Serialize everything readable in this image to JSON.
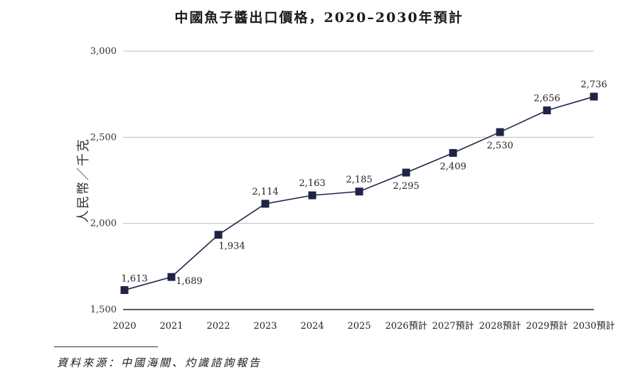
{
  "chart_data": {
    "type": "line",
    "title": "中國魚子醬出口價格，2020–2030年預計",
    "ylabel": "人民幣／千克",
    "xlabel": "",
    "categories": [
      "2020",
      "2021",
      "2022",
      "2023",
      "2024",
      "2025",
      "2026預計",
      "2027預計",
      "2028預計",
      "2029預計",
      "2030預計"
    ],
    "series": [
      {
        "values": [
          1613,
          1689,
          1934,
          2114,
          2163,
          2185,
          2295,
          2409,
          2530,
          2656,
          2736
        ]
      }
    ],
    "data_labels": [
      "1,613",
      "1,689",
      "1,934",
      "2,114",
      "2,163",
      "2,185",
      "2,295",
      "2,409",
      "2,530",
      "2,656",
      "2,736"
    ],
    "ylim": [
      1500,
      3000
    ],
    "yticks": [
      1500,
      2000,
      2500,
      3000
    ],
    "ytick_labels": [
      "1,500",
      "2,000",
      "2,500",
      "3,000"
    ],
    "grid": true,
    "line_color": "#1f2447",
    "marker": "square"
  },
  "source": "資料來源：中國海關、灼識諮詢報告"
}
